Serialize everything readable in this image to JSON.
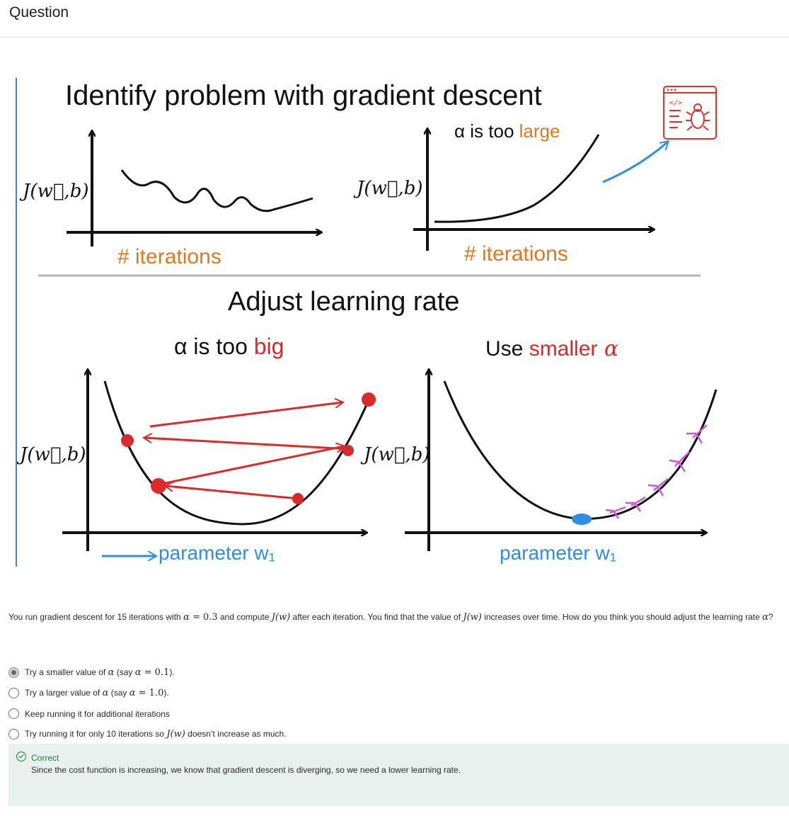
{
  "header": {
    "title": "Question"
  },
  "figure": {
    "top_title": "Identify problem with gradient descent",
    "top_left": {
      "ylabel": "J(w⃗,b)",
      "xlabel": "# iterations"
    },
    "top_right": {
      "ylabel": "J(w⃗,b)",
      "xlabel": "# iterations",
      "note_prefix": "α is too ",
      "note_emph": "large"
    },
    "mid_title": "Adjust learning rate",
    "bottom_left": {
      "ylabel": "J(w⃗,b)",
      "xlabel": "parameter w₁",
      "note_prefix": "α is too ",
      "note_emph": "big"
    },
    "bottom_right": {
      "ylabel": "J(w⃗,b)",
      "xlabel": "parameter w₁",
      "note_prefix": "Use ",
      "note_emph": "smaller",
      "note_suffix": " α"
    },
    "icon": "bug-window-icon",
    "colors": {
      "orange": "#e2791f",
      "red": "#d92b2b",
      "blue": "#2f8de4",
      "pink": "#c95ad8",
      "black": "#111111"
    }
  },
  "question": {
    "p1": "You run gradient descent for 15 iterations with ",
    "m1": "α",
    "m2": " = 0.3",
    "p2": " and compute ",
    "m3": "J(w)",
    "p3": " after each iteration. You find that the value of ",
    "m4": "J(w)",
    "p4": " increases over time.  How do you think you should adjust the learning rate ",
    "m5": "α",
    "p5": "?"
  },
  "options": [
    {
      "a": "Try a smaller value of ",
      "m1": "α",
      "b": " (say ",
      "m2": "α",
      "m3": " = 0.1",
      "c": ").",
      "selected": true
    },
    {
      "a": "Try a larger value of ",
      "m1": "α",
      "b": " (say ",
      "m2": "α",
      "m3": " = 1.0",
      "c": ").",
      "selected": false
    },
    {
      "a": "Keep running it for additional iterations",
      "selected": false
    },
    {
      "a": "Try running it for only 10 iterations so ",
      "m1": "J(w)",
      "b": " doesn’t increase as much.",
      "selected": false
    }
  ],
  "feedback": {
    "title": "Correct",
    "text": "Since the cost function is increasing, we know that gradient descent is diverging, so we need a lower learning rate."
  }
}
